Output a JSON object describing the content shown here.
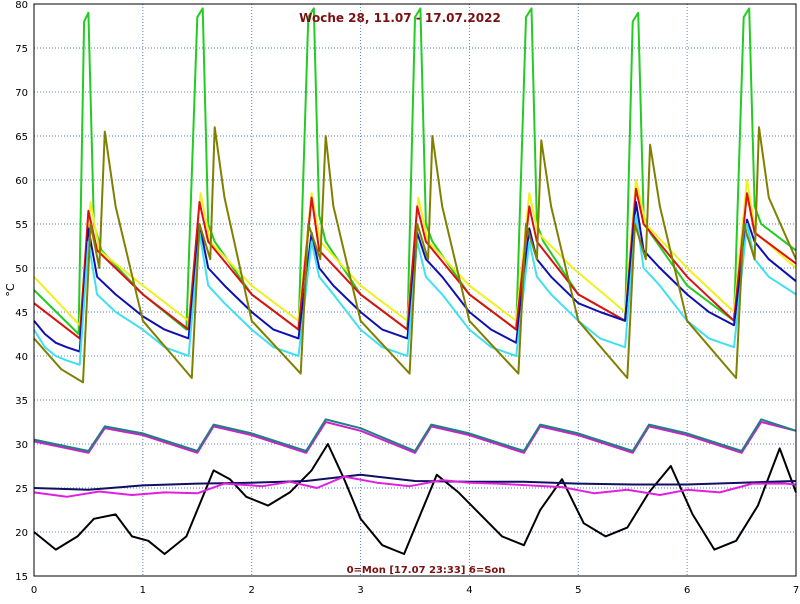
{
  "chart_data": {
    "type": "line",
    "title": "Woche 28, 11.07 - 17.07.2022",
    "footer": "0=Mon [17.07 23:33] 6=Son",
    "ylabel": "°C",
    "xlabel": "",
    "xlim": [
      0,
      7
    ],
    "ylim": [
      15,
      80
    ],
    "x_ticks": [
      0,
      1,
      2,
      3,
      4,
      5,
      6,
      7
    ],
    "y_ticks": [
      15,
      20,
      25,
      30,
      35,
      40,
      45,
      50,
      55,
      60,
      65,
      70,
      75,
      80
    ],
    "grid": true,
    "colors": {
      "background": "#ffffff",
      "grid": "#6080c8",
      "axis_text": "#000000",
      "title": "#7a1010"
    },
    "series": [
      {
        "color": "#22cc22",
        "x": [
          0,
          0.41,
          0.46,
          0.5,
          0.55,
          0.62,
          1.0,
          1.4,
          1.5,
          1.55,
          1.6,
          1.66,
          2.0,
          2.43,
          2.52,
          2.57,
          2.62,
          2.68,
          3.0,
          3.43,
          3.5,
          3.55,
          3.6,
          3.66,
          4.0,
          4.43,
          4.52,
          4.57,
          4.62,
          4.68,
          5.0,
          5.43,
          5.5,
          5.55,
          5.6,
          5.66,
          6.0,
          6.43,
          6.52,
          6.57,
          6.62,
          6.68,
          7.0
        ],
        "values": [
          47.5,
          42.5,
          78,
          79,
          55,
          52,
          47,
          43,
          78.5,
          79.5,
          55,
          53,
          47,
          43,
          78.5,
          79.5,
          56,
          53,
          47,
          43,
          78.5,
          79.5,
          55,
          53,
          47,
          43,
          78.5,
          79.5,
          55,
          53,
          47,
          44,
          78,
          79,
          56,
          54,
          48,
          44,
          78.5,
          79.5,
          57,
          55,
          52
        ]
      },
      {
        "color": "#f0f020",
        "x": [
          0,
          0.42,
          0.52,
          0.6,
          1.0,
          1.42,
          1.53,
          1.62,
          2.0,
          2.43,
          2.55,
          2.63,
          3.0,
          3.43,
          3.53,
          3.62,
          4.0,
          4.43,
          4.55,
          4.63,
          4.95,
          5.43,
          5.53,
          5.62,
          6.0,
          6.43,
          6.55,
          6.63,
          7.0
        ],
        "values": [
          49,
          43.5,
          57.5,
          52,
          48,
          44,
          58.5,
          53,
          48,
          44,
          58.5,
          53,
          48,
          44,
          58,
          53,
          48,
          44,
          58.5,
          54,
          50,
          45,
          60,
          55,
          50,
          45,
          60,
          54,
          50
        ]
      },
      {
        "color": "#dd1111",
        "x": [
          0,
          0.42,
          0.5,
          0.58,
          1.0,
          1.42,
          1.52,
          1.6,
          2.0,
          2.43,
          2.55,
          2.62,
          3.0,
          3.43,
          3.52,
          3.6,
          4.0,
          4.43,
          4.55,
          4.62,
          5.0,
          5.43,
          5.53,
          5.6,
          6.0,
          6.43,
          6.55,
          6.62,
          7.0
        ],
        "values": [
          46,
          42,
          56.5,
          52,
          47,
          43,
          57.5,
          53,
          47,
          43,
          58,
          52,
          47,
          43,
          57,
          53,
          47,
          43,
          57,
          53,
          47,
          44,
          59,
          55,
          49,
          44,
          58.5,
          54,
          50.5
        ]
      },
      {
        "color": "#1010b0",
        "x": [
          0,
          0.1,
          0.2,
          0.3,
          0.42,
          0.5,
          0.58,
          0.75,
          1.0,
          1.2,
          1.42,
          1.52,
          1.6,
          1.75,
          2.0,
          2.2,
          2.43,
          2.55,
          2.62,
          2.75,
          3.0,
          3.2,
          3.43,
          3.52,
          3.6,
          3.75,
          4.0,
          4.2,
          4.43,
          4.55,
          4.62,
          4.75,
          5.0,
          5.2,
          5.43,
          5.53,
          5.6,
          5.75,
          6.0,
          6.2,
          6.43,
          6.55,
          6.62,
          6.75,
          7.0
        ],
        "values": [
          44,
          42.5,
          41.5,
          41,
          40.5,
          54.5,
          49,
          47,
          44.5,
          43,
          42,
          55,
          50,
          48,
          45,
          43,
          42,
          54,
          50,
          48,
          45,
          43,
          42,
          54,
          51,
          49,
          45,
          43,
          41.5,
          54.5,
          51,
          49,
          46,
          45,
          44,
          57.5,
          52,
          50,
          47,
          45,
          43.5,
          55.5,
          53,
          51,
          48.5
        ]
      },
      {
        "color": "#40e0f0",
        "x": [
          0,
          0.1,
          0.2,
          0.3,
          0.42,
          0.5,
          0.58,
          0.75,
          1.0,
          1.2,
          1.42,
          1.52,
          1.6,
          1.75,
          2.0,
          2.2,
          2.43,
          2.55,
          2.62,
          2.75,
          3.0,
          3.2,
          3.43,
          3.52,
          3.6,
          3.75,
          4.0,
          4.2,
          4.43,
          4.55,
          4.62,
          4.75,
          5.0,
          5.2,
          5.43,
          5.53,
          5.6,
          5.75,
          6.0,
          6.2,
          6.43,
          6.55,
          6.62,
          6.75,
          7.0
        ],
        "values": [
          43,
          41,
          40,
          39.5,
          39,
          53,
          47,
          45,
          43,
          41,
          40,
          54,
          48,
          46,
          43,
          41,
          40,
          53,
          49,
          47,
          43,
          41,
          40,
          53,
          49,
          47,
          43,
          41,
          40,
          53,
          49,
          47,
          44,
          42,
          41,
          56,
          50,
          48,
          44,
          42,
          41,
          55,
          51,
          49,
          47
        ]
      },
      {
        "color": "#808000",
        "x": [
          0,
          0.25,
          0.45,
          0.52,
          0.6,
          0.65,
          0.75,
          1.0,
          1.45,
          1.52,
          1.62,
          1.66,
          1.75,
          2.0,
          2.45,
          2.52,
          2.63,
          2.68,
          2.75,
          3.0,
          3.45,
          3.52,
          3.62,
          3.66,
          3.75,
          4.0,
          4.45,
          4.52,
          4.62,
          4.66,
          4.75,
          5.0,
          5.45,
          5.52,
          5.62,
          5.66,
          5.75,
          6.0,
          6.45,
          6.52,
          6.62,
          6.66,
          6.75,
          7.0
        ],
        "values": [
          42,
          38.5,
          37,
          55,
          50,
          65.5,
          57,
          44,
          37.5,
          55,
          51,
          66,
          58,
          44,
          38,
          55,
          51,
          65,
          57,
          44,
          38,
          55,
          51,
          65,
          57,
          44,
          38,
          55,
          51,
          64.5,
          57,
          44,
          37.5,
          55,
          51,
          64,
          57,
          44,
          37.5,
          55,
          51,
          66,
          58,
          51
        ]
      },
      {
        "color": "#cc20cc",
        "x": [
          0,
          0.5,
          0.65,
          1.0,
          1.5,
          1.65,
          2.0,
          2.5,
          2.68,
          3.0,
          3.5,
          3.65,
          4.0,
          4.5,
          4.65,
          5.0,
          5.5,
          5.65,
          6.0,
          6.5,
          6.68,
          7.0
        ],
        "values": [
          30.3,
          29,
          31.8,
          31,
          29,
          32,
          31,
          29,
          32.5,
          31.5,
          29,
          32,
          31,
          29,
          32,
          31,
          29,
          32,
          31,
          29,
          32.5,
          31.5
        ]
      },
      {
        "color": "#208080",
        "x": [
          0,
          0.5,
          0.65,
          1.0,
          1.5,
          1.65,
          2.0,
          2.5,
          2.68,
          3.0,
          3.5,
          3.65,
          4.0,
          4.5,
          4.65,
          5.0,
          5.5,
          5.65,
          6.0,
          6.5,
          6.68,
          7.0
        ],
        "values": [
          30.5,
          29.2,
          32,
          31.2,
          29.2,
          32.2,
          31.2,
          29.2,
          32.8,
          31.8,
          29.2,
          32.2,
          31.2,
          29.2,
          32.2,
          31.2,
          29.2,
          32.2,
          31.2,
          29.2,
          32.8,
          31.5
        ]
      },
      {
        "color": "#000000",
        "x": [
          0,
          0.2,
          0.4,
          0.55,
          0.75,
          0.9,
          1.05,
          1.2,
          1.4,
          1.65,
          1.8,
          1.95,
          2.15,
          2.35,
          2.55,
          2.7,
          2.85,
          3.0,
          3.2,
          3.4,
          3.55,
          3.7,
          3.9,
          4.1,
          4.3,
          4.5,
          4.65,
          4.85,
          5.05,
          5.25,
          5.45,
          5.65,
          5.85,
          6.05,
          6.25,
          6.45,
          6.65,
          6.85,
          7.0
        ],
        "values": [
          20,
          18,
          19.5,
          21.5,
          22,
          19.5,
          19,
          17.5,
          19.5,
          27,
          26,
          24,
          23,
          24.5,
          27,
          30,
          26,
          21.5,
          18.5,
          17.5,
          22,
          26.5,
          24.5,
          22,
          19.5,
          18.5,
          22.5,
          26,
          21,
          19.5,
          20.5,
          24.5,
          27.5,
          22,
          18,
          19,
          23,
          29.5,
          24.5
        ]
      },
      {
        "color": "#101060",
        "x": [
          0,
          0.5,
          1.0,
          1.5,
          2.0,
          2.5,
          3.0,
          3.5,
          4.0,
          4.5,
          5.0,
          5.5,
          6.0,
          6.5,
          7.0
        ],
        "values": [
          25,
          24.8,
          25.3,
          25.5,
          25.6,
          25.8,
          26.5,
          25.8,
          25.7,
          25.7,
          25.5,
          25.4,
          25.4,
          25.6,
          25.8
        ]
      },
      {
        "color": "#e020e0",
        "x": [
          0,
          0.3,
          0.6,
          0.9,
          1.2,
          1.5,
          1.75,
          2.1,
          2.35,
          2.6,
          2.85,
          3.15,
          3.45,
          3.75,
          4.0,
          4.25,
          4.55,
          4.85,
          5.15,
          5.45,
          5.75,
          6.0,
          6.3,
          6.6,
          6.9,
          7.0
        ],
        "values": [
          24.5,
          24,
          24.6,
          24.2,
          24.5,
          24.4,
          25.5,
          25.2,
          25.7,
          25,
          26.3,
          25.6,
          25.2,
          25.9,
          25.6,
          25.5,
          25.3,
          25.1,
          24.4,
          24.8,
          24.2,
          24.8,
          24.5,
          25.5,
          25.5,
          25.4
        ]
      }
    ]
  }
}
